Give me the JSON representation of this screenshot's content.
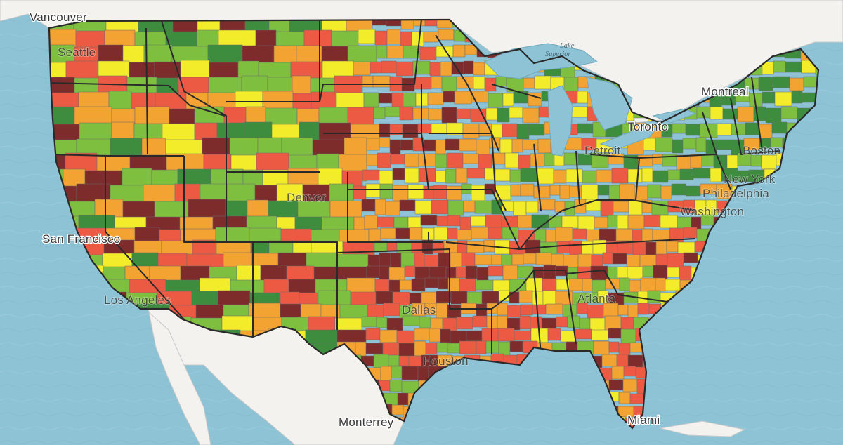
{
  "labels": {
    "vancouver": "Vancouver",
    "seattle": "Seattle",
    "lake_superior": "Lake Superior",
    "montreal": "Montreal",
    "toronto": "Toronto",
    "detroit": "Detroit",
    "boston": "Boston",
    "new_york": "New York",
    "philadelphia": "Philadelphia",
    "washington": "Washington",
    "san_francisco": "San Francisco",
    "denver": "Denver",
    "los_angeles": "Los Angeles",
    "dallas": "Dallas",
    "atlanta": "Atlanta",
    "houston": "Houston",
    "monterrey": "Monterrey",
    "miami": "Miami"
  },
  "colors": {
    "water": "#8ec3d6",
    "land": "#f3f2ee",
    "dark_green": "#3e8c3e",
    "green": "#7fbf3f",
    "yellow": "#f2ec2b",
    "orange": "#f3a332",
    "red": "#ec5a44",
    "maroon": "#7d2b2b",
    "state_border": "#2a2a2a",
    "county_border": "#6b6b6b"
  }
}
